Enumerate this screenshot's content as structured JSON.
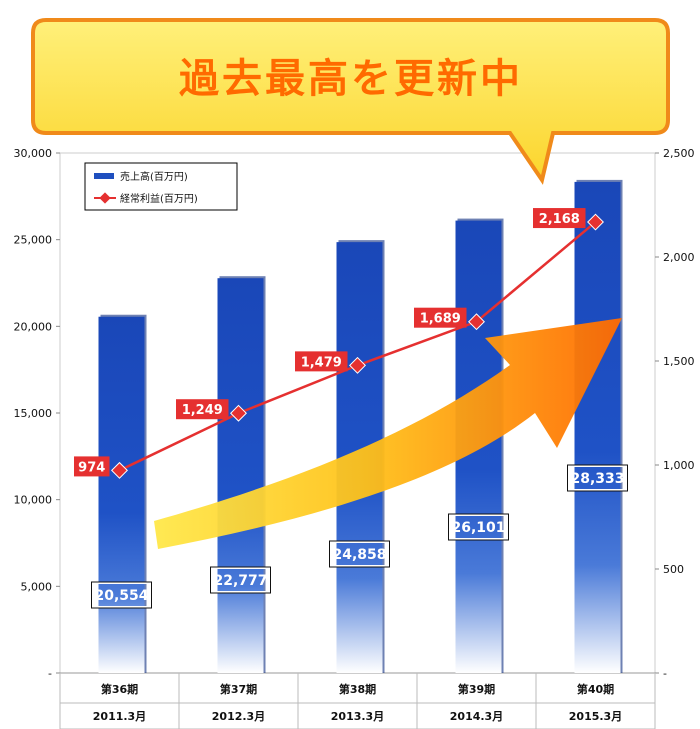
{
  "banner": {
    "text": "過去最高を更新中"
  },
  "chart_data": {
    "type": "bar",
    "categories": [
      "第36期",
      "第37期",
      "第38期",
      "第39期",
      "第40期"
    ],
    "category_sublabels": [
      "2011.3月",
      "2012.3月",
      "2013.3月",
      "2014.3月",
      "2015.3月"
    ],
    "series": [
      {
        "name": "売上高(百万円)",
        "type": "bar",
        "axis": "left",
        "values": [
          20554,
          22777,
          24858,
          26101,
          28333
        ],
        "labels": [
          "20,554",
          "22,777",
          "24,858",
          "26,101",
          "28,333"
        ]
      },
      {
        "name": "経常利益(百万円)",
        "type": "line",
        "axis": "right",
        "values": [
          974,
          1249,
          1479,
          1689,
          2168
        ],
        "labels": [
          "974",
          "1,249",
          "1,479",
          "1,689",
          "2,168"
        ]
      }
    ],
    "y_left": {
      "ylim": [
        0,
        30000
      ],
      "ticks": [
        "-",
        "5,000",
        "10,000",
        "15,000",
        "20,000",
        "25,000",
        "30,000"
      ]
    },
    "y_right": {
      "ylim": [
        0,
        2500
      ],
      "ticks": [
        "-",
        "500",
        "1,000",
        "1,500",
        "2,000",
        "2,500"
      ]
    },
    "legend_position": "top-left",
    "colors": {
      "bar": "#1f4fbf",
      "line": "#e53030",
      "banner_fill": "#fde24a",
      "banner_border": "#f08a1a",
      "arrow": "#ff7a00"
    }
  }
}
